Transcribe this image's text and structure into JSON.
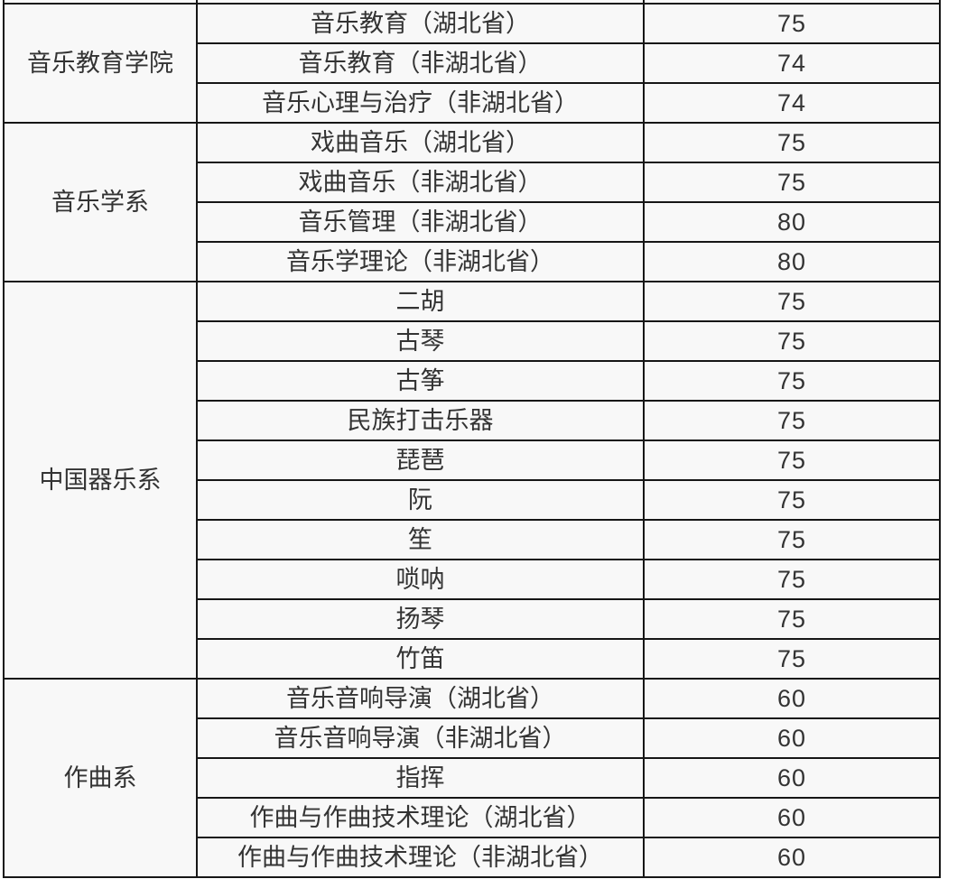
{
  "page": {
    "background": "#ffffff"
  },
  "table": {
    "border_color": "#161616",
    "cell_background": "#f8f8f8",
    "text_color": "#333333",
    "groups": [
      {
        "department": "音乐教育学院",
        "rows": [
          {
            "major": "音乐教育（湖北省）",
            "score": "75"
          },
          {
            "major": "音乐教育（非湖北省）",
            "score": "74"
          },
          {
            "major": "音乐心理与治疗（非湖北省）",
            "score": "74"
          }
        ]
      },
      {
        "department": "音乐学系",
        "rows": [
          {
            "major": "戏曲音乐（湖北省）",
            "score": "75"
          },
          {
            "major": "戏曲音乐（非湖北省）",
            "score": "75"
          },
          {
            "major": "音乐管理（非湖北省）",
            "score": "80"
          },
          {
            "major": "音乐学理论（非湖北省）",
            "score": "80"
          }
        ]
      },
      {
        "department": "中国器乐系",
        "rows": [
          {
            "major": "二胡",
            "score": "75"
          },
          {
            "major": "古琴",
            "score": "75"
          },
          {
            "major": "古筝",
            "score": "75"
          },
          {
            "major": "民族打击乐器",
            "score": "75"
          },
          {
            "major": "琵琶",
            "score": "75"
          },
          {
            "major": "阮",
            "score": "75"
          },
          {
            "major": "笙",
            "score": "75"
          },
          {
            "major": "唢呐",
            "score": "75"
          },
          {
            "major": "扬琴",
            "score": "75"
          },
          {
            "major": "竹笛",
            "score": "75"
          }
        ]
      },
      {
        "department": "作曲系",
        "rows": [
          {
            "major": "音乐音响导演（湖北省）",
            "score": "60"
          },
          {
            "major": "音乐音响导演（非湖北省）",
            "score": "60"
          },
          {
            "major": "指挥",
            "score": "60"
          },
          {
            "major": "作曲与作曲技术理论（湖北省）",
            "score": "60"
          },
          {
            "major": "作曲与作曲技术理论（非湖北省）",
            "score": "60"
          }
        ]
      }
    ]
  }
}
